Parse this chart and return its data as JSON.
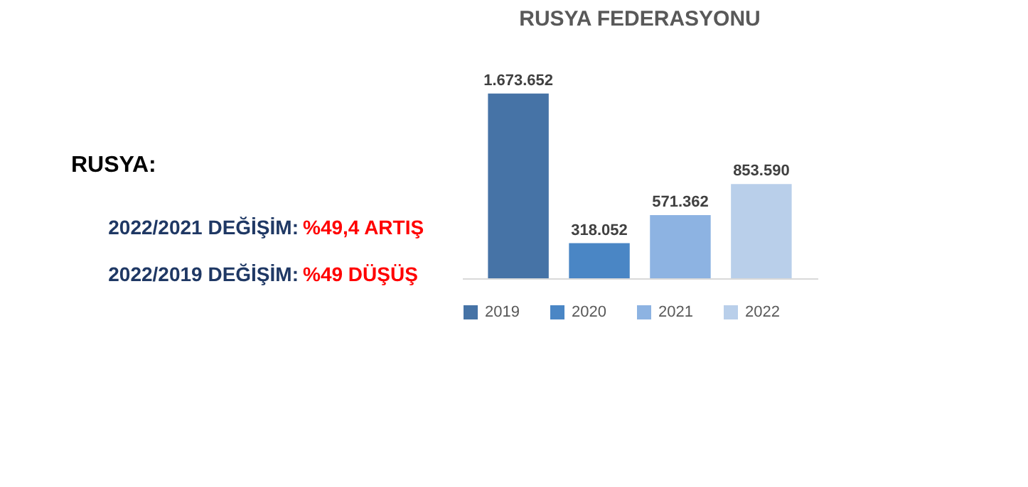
{
  "chart_data": {
    "type": "bar",
    "title": "RUSYA FEDERASYONU",
    "categories": [
      null
    ],
    "series": [
      {
        "name": "2019",
        "color": "#4673a6",
        "values": [
          1673652
        ],
        "value_labels": [
          "1.673.652"
        ]
      },
      {
        "name": "2020",
        "color": "#4a86c5",
        "values": [
          318052
        ],
        "value_labels": [
          "318.052"
        ]
      },
      {
        "name": "2021",
        "color": "#8db3e2",
        "values": [
          571362
        ],
        "value_labels": [
          "571.362"
        ]
      },
      {
        "name": "2022",
        "color": "#b9cfea",
        "values": [
          853590
        ],
        "value_labels": [
          "853.590"
        ]
      }
    ],
    "legend": "bottom",
    "tick_labels": false,
    "annotations": [
      "RUSYA:",
      "2022/2021 DEĞİŞİM:",
      "%49,4 ARTIŞ",
      "2022/2019 DEĞİŞİM:",
      "%49 DÜŞÜŞ"
    ]
  }
}
